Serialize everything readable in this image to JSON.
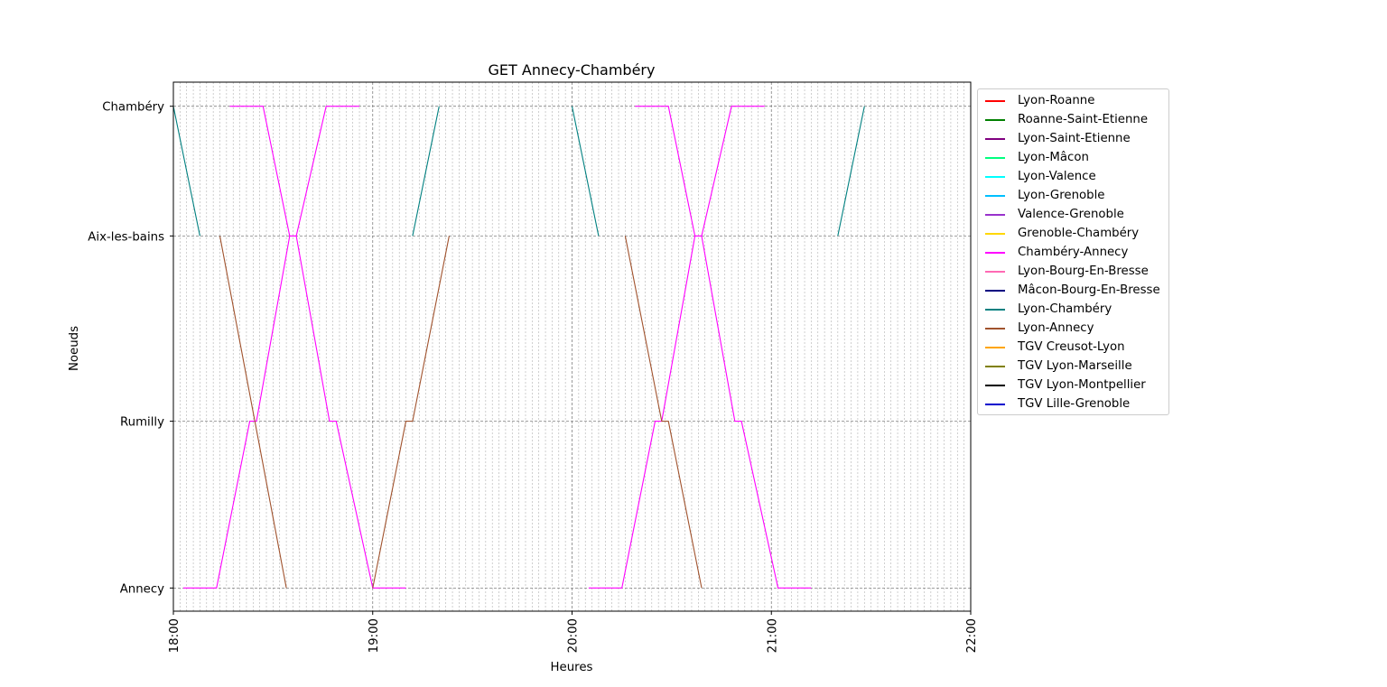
{
  "chart_data": {
    "type": "line",
    "title": "GET Annecy-Chambéry",
    "xlabel": "Heures",
    "ylabel": "Noeuds",
    "x_unit": "time HH:MM",
    "xlim": [
      "18:00",
      "22:00"
    ],
    "x_ticks": [
      "18:00",
      "19:00",
      "20:00",
      "21:00",
      "22:00"
    ],
    "x_minor_grid_minutes": 2,
    "y_categories": [
      {
        "label": "Annecy",
        "value": 0
      },
      {
        "label": "Rumilly",
        "value": 18
      },
      {
        "label": "Aix-les-bains",
        "value": 38
      },
      {
        "label": "Chambéry",
        "value": 52
      }
    ],
    "ylim": [
      -2.5,
      54.6
    ],
    "grid": true,
    "legend_position": "outside-right",
    "legend": [
      {
        "name": "Lyon-Roanne",
        "color": "#ff0000"
      },
      {
        "name": "Roanne-Saint-Etienne",
        "color": "#008000"
      },
      {
        "name": "Lyon-Saint-Etienne",
        "color": "#800080"
      },
      {
        "name": "Lyon-Mâcon",
        "color": "#00ff7f"
      },
      {
        "name": "Lyon-Valence",
        "color": "#00ffff"
      },
      {
        "name": "Lyon-Grenoble",
        "color": "#00bfff"
      },
      {
        "name": "Valence-Grenoble",
        "color": "#9932cc"
      },
      {
        "name": "Grenoble-Chambéry",
        "color": "#ffd700"
      },
      {
        "name": "Chambéry-Annecy",
        "color": "#ff00ff"
      },
      {
        "name": "Lyon-Bourg-En-Bresse",
        "color": "#ff69b4"
      },
      {
        "name": "Mâcon-Bourg-En-Bresse",
        "color": "#000080"
      },
      {
        "name": "Lyon-Chambéry",
        "color": "#008080"
      },
      {
        "name": "Lyon-Annecy",
        "color": "#a0522d"
      },
      {
        "name": "TGV Creusot-Lyon",
        "color": "#ffa500"
      },
      {
        "name": "TGV Lyon-Marseille",
        "color": "#808000"
      },
      {
        "name": "TGV Lyon-Montpellier",
        "color": "#000000"
      },
      {
        "name": "TGV Lille-Grenoble",
        "color": "#0000cd"
      }
    ],
    "series": [
      {
        "name": "Chambéry-Annecy",
        "color": "#ff00ff",
        "points": [
          [
            "18:03",
            0
          ],
          [
            "18:13",
            0
          ],
          [
            "18:23",
            18
          ],
          [
            "18:25",
            18
          ],
          [
            "18:35",
            38
          ],
          [
            "18:37",
            38
          ],
          [
            "18:46",
            52
          ],
          [
            "18:56",
            52
          ]
        ]
      },
      {
        "name": "Chambéry-Annecy",
        "color": "#ff00ff",
        "points": [
          [
            "18:17",
            52
          ],
          [
            "18:27",
            52
          ],
          [
            "18:35",
            38
          ],
          [
            "18:37",
            38
          ],
          [
            "18:47",
            18
          ],
          [
            "18:49",
            18
          ],
          [
            "19:00",
            0
          ],
          [
            "19:10",
            0
          ]
        ]
      },
      {
        "name": "Chambéry-Annecy",
        "color": "#ff00ff",
        "points": [
          [
            "20:05",
            0
          ],
          [
            "20:15",
            0
          ],
          [
            "20:25",
            18
          ],
          [
            "20:27",
            18
          ],
          [
            "20:37",
            38
          ],
          [
            "20:39",
            38
          ],
          [
            "20:48",
            52
          ],
          [
            "20:58",
            52
          ]
        ]
      },
      {
        "name": "Chambéry-Annecy",
        "color": "#ff00ff",
        "points": [
          [
            "20:19",
            52
          ],
          [
            "20:29",
            52
          ],
          [
            "20:37",
            38
          ],
          [
            "20:39",
            38
          ],
          [
            "20:49",
            18
          ],
          [
            "20:51",
            18
          ],
          [
            "21:02",
            0
          ],
          [
            "21:12",
            0
          ]
        ]
      },
      {
        "name": "Lyon-Chambéry",
        "color": "#008080",
        "points": [
          [
            "18:00",
            52
          ],
          [
            "18:08",
            38
          ]
        ]
      },
      {
        "name": "Lyon-Chambéry",
        "color": "#008080",
        "points": [
          [
            "19:12",
            38
          ],
          [
            "19:20",
            52
          ]
        ]
      },
      {
        "name": "Lyon-Chambéry",
        "color": "#008080",
        "points": [
          [
            "20:00",
            52
          ],
          [
            "20:08",
            38
          ]
        ]
      },
      {
        "name": "Lyon-Chambéry",
        "color": "#008080",
        "points": [
          [
            "21:20",
            38
          ],
          [
            "21:28",
            52
          ]
        ]
      },
      {
        "name": "Lyon-Annecy",
        "color": "#a0522d",
        "points": [
          [
            "18:14",
            38
          ],
          [
            "18:34",
            0
          ]
        ]
      },
      {
        "name": "Lyon-Annecy",
        "color": "#a0522d",
        "points": [
          [
            "19:00",
            0
          ],
          [
            "19:10",
            18
          ],
          [
            "19:12",
            18
          ],
          [
            "19:23",
            38
          ]
        ]
      },
      {
        "name": "Lyon-Annecy",
        "color": "#a0522d",
        "points": [
          [
            "20:16",
            38
          ],
          [
            "20:27",
            18
          ],
          [
            "20:29",
            18
          ],
          [
            "20:39",
            0
          ]
        ]
      }
    ]
  }
}
